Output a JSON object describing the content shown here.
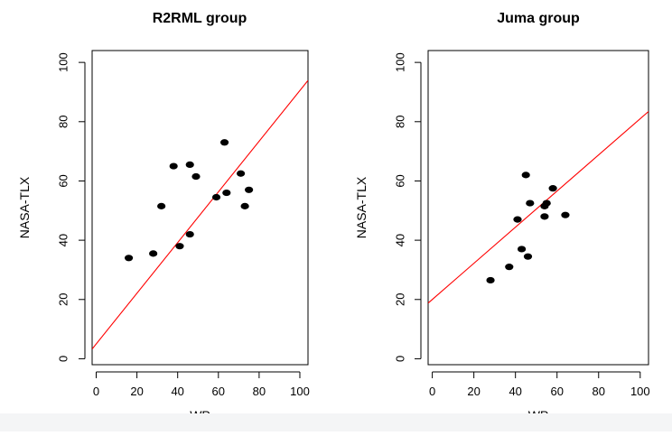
{
  "chart_data": [
    {
      "type": "scatter",
      "title": "R2RML group",
      "xlabel": "WP",
      "ylabel": "NASA-TLX",
      "xlim": [
        -2,
        104
      ],
      "ylim": [
        -2,
        104
      ],
      "xticks": [
        0,
        20,
        40,
        60,
        80,
        100
      ],
      "yticks": [
        0,
        20,
        40,
        60,
        80,
        100
      ],
      "points": [
        {
          "x": 16,
          "y": 34
        },
        {
          "x": 28,
          "y": 35.5
        },
        {
          "x": 32,
          "y": 51.5
        },
        {
          "x": 38,
          "y": 65
        },
        {
          "x": 41,
          "y": 38
        },
        {
          "x": 46,
          "y": 65.5
        },
        {
          "x": 46,
          "y": 42
        },
        {
          "x": 49,
          "y": 61.5
        },
        {
          "x": 59,
          "y": 54.5
        },
        {
          "x": 63,
          "y": 73
        },
        {
          "x": 64,
          "y": 56
        },
        {
          "x": 71,
          "y": 62.5
        },
        {
          "x": 73,
          "y": 51.5
        },
        {
          "x": 75,
          "y": 57
        }
      ],
      "fit_line": {
        "intercept": 5,
        "slope": 0.855,
        "color": "#ff0000"
      },
      "point_color": "#000000",
      "grid": false
    },
    {
      "type": "scatter",
      "title": "Juma group",
      "xlabel": "WP",
      "ylabel": "NASA-TLX",
      "xlim": [
        -2,
        104
      ],
      "ylim": [
        -2,
        104
      ],
      "xticks": [
        0,
        20,
        40,
        60,
        80,
        100
      ],
      "yticks": [
        0,
        20,
        40,
        60,
        80,
        100
      ],
      "points": [
        {
          "x": 28,
          "y": 26.5
        },
        {
          "x": 37,
          "y": 31
        },
        {
          "x": 41,
          "y": 47
        },
        {
          "x": 43,
          "y": 37
        },
        {
          "x": 45,
          "y": 62
        },
        {
          "x": 46,
          "y": 34.5
        },
        {
          "x": 47,
          "y": 52.5
        },
        {
          "x": 54,
          "y": 48
        },
        {
          "x": 54,
          "y": 51.5
        },
        {
          "x": 55,
          "y": 52.5
        },
        {
          "x": 58,
          "y": 57.5
        },
        {
          "x": 64,
          "y": 48.5
        }
      ],
      "fit_line": {
        "intercept": 20,
        "slope": 0.61,
        "color": "#ff0000"
      },
      "point_color": "#000000",
      "grid": false
    }
  ]
}
